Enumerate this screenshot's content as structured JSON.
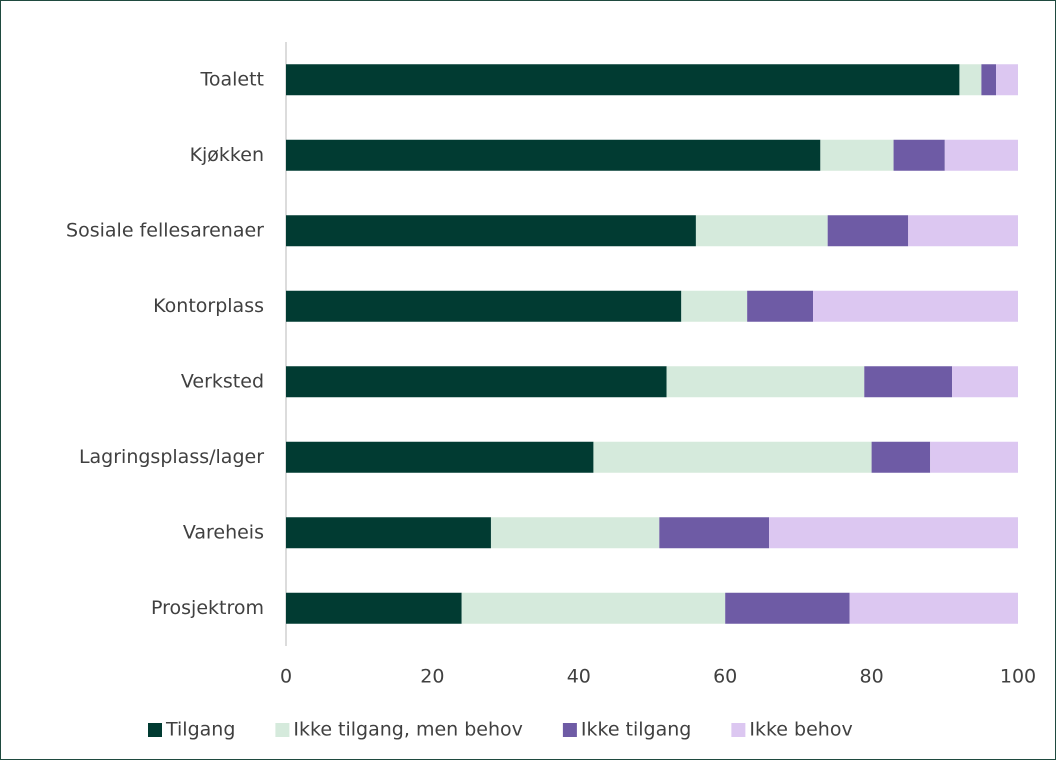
{
  "chart_data": {
    "type": "stacked_barh",
    "categories": [
      "Toalett",
      "Kjøkken",
      "Sosiale fellesarenaer",
      "Kontorplass",
      "Verksted",
      "Lagringsplass/lager",
      "Vareheis",
      "Prosjektrom"
    ],
    "series": [
      {
        "name": "Tilgang",
        "color": "#013b32",
        "values": [
          92,
          73,
          56,
          54,
          52,
          42,
          28,
          24
        ]
      },
      {
        "name": "Ikke tilgang, men behov",
        "color": "#d5eadc",
        "values": [
          3,
          10,
          18,
          9,
          27,
          38,
          23,
          36
        ]
      },
      {
        "name": "Ikke tilgang",
        "color": "#6e5ba5",
        "values": [
          2,
          7,
          11,
          9,
          12,
          8,
          15,
          17
        ]
      },
      {
        "name": "Ikke behov",
        "color": "#dcc7f1",
        "values": [
          3,
          10,
          15,
          28,
          9,
          12,
          34,
          23
        ]
      }
    ],
    "xlim": [
      0,
      100
    ],
    "xticks": [
      0,
      20,
      40,
      60,
      80,
      100
    ],
    "legend": "bottom"
  }
}
